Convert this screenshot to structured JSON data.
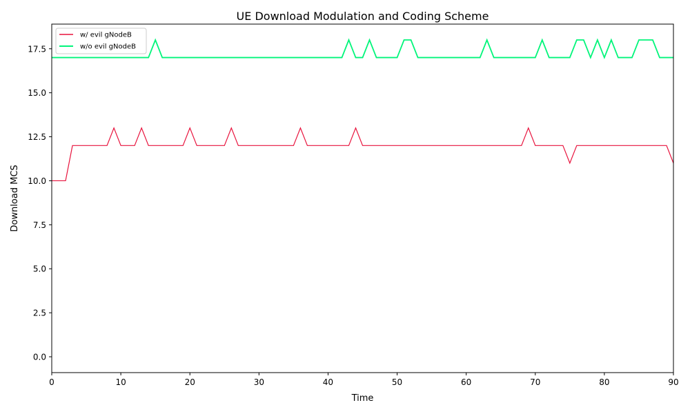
{
  "chart_data": {
    "type": "line",
    "title": "UE Download Modulation and Coding Scheme",
    "xlabel": "Time",
    "ylabel": "Download MCS",
    "xlim": [
      0,
      90
    ],
    "ylim": [
      -0.9,
      18.9
    ],
    "x_ticks": [
      0,
      10,
      20,
      30,
      40,
      50,
      60,
      70,
      80,
      90
    ],
    "y_ticks": [
      0.0,
      2.5,
      5.0,
      7.5,
      10.0,
      12.5,
      15.0,
      17.5
    ],
    "x_tick_labels": [
      "0",
      "10",
      "20",
      "30",
      "40",
      "50",
      "60",
      "70",
      "80",
      "90"
    ],
    "y_tick_labels": [
      "0.0",
      "2.5",
      "5.0",
      "7.5",
      "10.0",
      "12.5",
      "15.0",
      "17.5"
    ],
    "grid": false,
    "legend_position": "top-left",
    "x": [
      0,
      1,
      2,
      3,
      4,
      5,
      6,
      7,
      8,
      9,
      10,
      11,
      12,
      13,
      14,
      15,
      16,
      17,
      18,
      19,
      20,
      21,
      22,
      23,
      24,
      25,
      26,
      27,
      28,
      29,
      30,
      31,
      32,
      33,
      34,
      35,
      36,
      37,
      38,
      39,
      40,
      41,
      42,
      43,
      44,
      45,
      46,
      47,
      48,
      49,
      50,
      51,
      52,
      53,
      54,
      55,
      56,
      57,
      58,
      59,
      60,
      61,
      62,
      63,
      64,
      65,
      66,
      67,
      68,
      69,
      70,
      71,
      72,
      73,
      74,
      75,
      76,
      77,
      78,
      79,
      80,
      81,
      82,
      83,
      84,
      85,
      86,
      87,
      88,
      89,
      90
    ],
    "series": [
      {
        "name": "w/ evil gNodeB",
        "color": "#e8123c",
        "values": [
          10,
          10,
          10,
          12,
          12,
          12,
          12,
          12,
          12,
          13,
          12,
          12,
          12,
          13,
          12,
          12,
          12,
          12,
          12,
          12,
          13,
          12,
          12,
          12,
          12,
          12,
          13,
          12,
          12,
          12,
          12,
          12,
          12,
          12,
          12,
          12,
          13,
          12,
          12,
          12,
          12,
          12,
          12,
          12,
          13,
          12,
          12,
          12,
          12,
          12,
          12,
          12,
          12,
          12,
          12,
          12,
          12,
          12,
          12,
          12,
          12,
          12,
          12,
          12,
          12,
          12,
          12,
          12,
          12,
          13,
          12,
          12,
          12,
          12,
          12,
          11,
          12,
          12,
          12,
          12,
          12,
          12,
          12,
          12,
          12,
          12,
          12,
          12,
          12,
          12,
          11
        ]
      },
      {
        "name": "w/o evil gNodeB",
        "color": "#00f57a",
        "values": [
          17,
          17,
          17,
          17,
          17,
          17,
          17,
          17,
          17,
          17,
          17,
          17,
          17,
          17,
          17,
          18,
          17,
          17,
          17,
          17,
          17,
          17,
          17,
          17,
          17,
          17,
          17,
          17,
          17,
          17,
          17,
          17,
          17,
          17,
          17,
          17,
          17,
          17,
          17,
          17,
          17,
          17,
          17,
          18,
          17,
          17,
          18,
          17,
          17,
          17,
          17,
          18,
          18,
          17,
          17,
          17,
          17,
          17,
          17,
          17,
          17,
          17,
          17,
          18,
          17,
          17,
          17,
          17,
          17,
          17,
          17,
          18,
          17,
          17,
          17,
          17,
          18,
          18,
          17,
          18,
          17,
          18,
          17,
          17,
          17,
          18,
          18,
          18,
          17,
          17,
          17
        ]
      }
    ]
  }
}
